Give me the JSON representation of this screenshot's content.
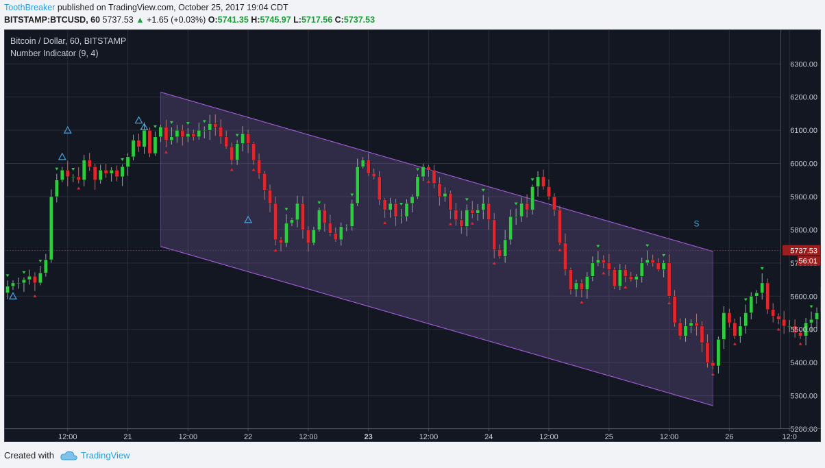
{
  "header": {
    "author": "ToothBreaker",
    "published": "published on TradingView.com, October 25, 2017 19:04 CDT",
    "symbol": "BITSTAMP:BTCUSD, 60",
    "price": "5737.53",
    "change": "+1.65 (+0.03%)",
    "o_label": "O:",
    "o": "5741.35",
    "h_label": "H:",
    "h": "5745.97",
    "l_label": "L:",
    "l": "5717.56",
    "c_label": "C:",
    "c": "5737.53"
  },
  "legend": {
    "title": "Bitcoin / Dollar, 60, BITSTAMP",
    "indicator": "Number Indicator (9, 4)"
  },
  "price_tag": {
    "value": "5737.53",
    "countdown": "56:01"
  },
  "setup_marker": "S",
  "footer": {
    "created": "Created with",
    "brand": "TradingView"
  },
  "colors": {
    "up": "#2ecc40",
    "down": "#e3262e",
    "channel": "#9b59d0",
    "bg": "#131722"
  },
  "chart_data": {
    "type": "candlestick",
    "ylim": [
      5200,
      6350
    ],
    "y_ticks": [
      5200,
      5300,
      5400,
      5500,
      5600,
      5700,
      5800,
      5900,
      6000,
      6100,
      6200,
      6300
    ],
    "y_tick_labels": [
      "5200.00",
      "5300.00",
      "5400.00",
      "5500.00",
      "5600.00",
      "5700.00",
      "5800.00",
      "5900.00",
      "6000.00",
      "6100.00",
      "6200.00",
      "6300.00"
    ],
    "x_ticks": [
      "12:00",
      "21",
      "12:00",
      "22",
      "12:00",
      "23",
      "12:00",
      "24",
      "12:00",
      "25",
      "12:00",
      "26",
      "12:0"
    ],
    "x_tick_bar_index": [
      11,
      22,
      33,
      44,
      55,
      66,
      77,
      88,
      99,
      110,
      121,
      132,
      143
    ],
    "last_price": 5737.53,
    "channel": {
      "upper": [
        [
          28,
          6215
        ],
        [
          129,
          5735
        ]
      ],
      "lower": [
        [
          28,
          5750
        ],
        [
          129,
          5270
        ]
      ]
    },
    "closes": [
      5630,
      5640,
      5640,
      5650,
      5660,
      5640,
      5670,
      5710,
      5900,
      5950,
      5980,
      5960,
      5960,
      5950,
      6010,
      5990,
      5950,
      5980,
      5970,
      5980,
      5960,
      5990,
      6020,
      6070,
      6050,
      6100,
      6030,
      6080,
      6110,
      6070,
      6080,
      6100,
      6080,
      6090,
      6080,
      6100,
      6100,
      6120,
      6110,
      6080,
      6050,
      6010,
      6060,
      6090,
      6060,
      6010,
      5970,
      5920,
      5880,
      5770,
      5760,
      5820,
      5830,
      5880,
      5800,
      5760,
      5800,
      5860,
      5820,
      5790,
      5770,
      5810,
      5810,
      5880,
      5990,
      6010,
      5970,
      5960,
      5890,
      5860,
      5880,
      5840,
      5840,
      5880,
      5900,
      5960,
      5990,
      5980,
      5940,
      5900,
      5910,
      5860,
      5830,
      5810,
      5860,
      5850,
      5860,
      5880,
      5830,
      5740,
      5720,
      5770,
      5840,
      5840,
      5880,
      5860,
      5930,
      5960,
      5930,
      5900,
      5860,
      5760,
      5680,
      5620,
      5640,
      5620,
      5660,
      5700,
      5710,
      5700,
      5680,
      5630,
      5680,
      5660,
      5650,
      5660,
      5700,
      5710,
      5700,
      5680,
      5700,
      5600,
      5520,
      5480,
      5510,
      5520,
      5510,
      5460,
      5400,
      5390,
      5470,
      5550,
      5520,
      5480,
      5510,
      5550,
      5600,
      5610,
      5640,
      5560,
      5540,
      5530,
      5510,
      5510,
      5490,
      5480,
      5520,
      5530,
      5550,
      5630,
      5690,
      5710,
      5710,
      5720,
      5730,
      5740,
      5738
    ],
    "up_arrows_note": "green triangles above bars, red triangles below bars"
  }
}
